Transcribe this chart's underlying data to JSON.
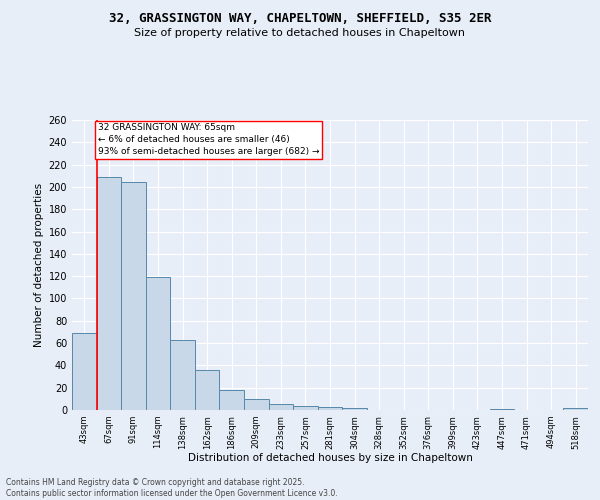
{
  "title1": "32, GRASSINGTON WAY, CHAPELTOWN, SHEFFIELD, S35 2ER",
  "title2": "Size of property relative to detached houses in Chapeltown",
  "xlabel": "Distribution of detached houses by size in Chapeltown",
  "ylabel": "Number of detached properties",
  "categories": [
    "43sqm",
    "67sqm",
    "91sqm",
    "114sqm",
    "138sqm",
    "162sqm",
    "186sqm",
    "209sqm",
    "233sqm",
    "257sqm",
    "281sqm",
    "304sqm",
    "328sqm",
    "352sqm",
    "376sqm",
    "399sqm",
    "423sqm",
    "447sqm",
    "471sqm",
    "494sqm",
    "518sqm"
  ],
  "values": [
    69,
    209,
    204,
    119,
    63,
    36,
    18,
    10,
    5,
    4,
    3,
    2,
    0,
    0,
    0,
    0,
    0,
    1,
    0,
    0,
    2
  ],
  "bar_color": "#c8d8e8",
  "bar_edge_color": "#5588aa",
  "ylim": [
    0,
    260
  ],
  "yticks": [
    0,
    20,
    40,
    60,
    80,
    100,
    120,
    140,
    160,
    180,
    200,
    220,
    240,
    260
  ],
  "annotation_text": "32 GRASSINGTON WAY: 65sqm\n← 6% of detached houses are smaller (46)\n93% of semi-detached houses are larger (682) →",
  "vline_x_index": 0.5,
  "background_color": "#e8eef8",
  "grid_color": "#ffffff",
  "footer_line1": "Contains HM Land Registry data © Crown copyright and database right 2025.",
  "footer_line2": "Contains public sector information licensed under the Open Government Licence v3.0."
}
